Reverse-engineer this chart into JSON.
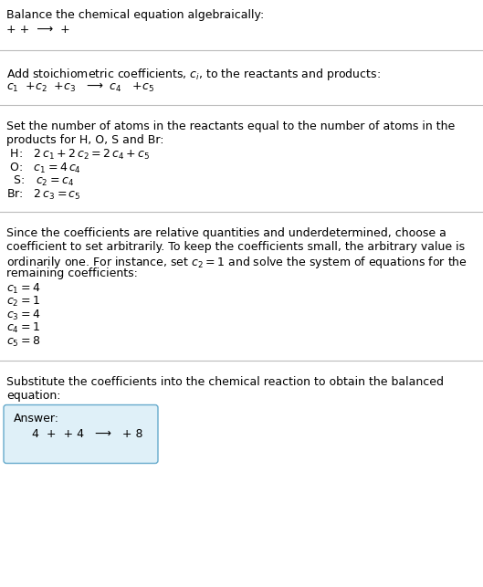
{
  "title": "Balance the chemical equation algebraically:",
  "line1": "+ +  ⟶  +",
  "section2_header": "Add stoichiometric coefficients, $c_i$, to the reactants and products:",
  "section2_eq": "$c_1$  +$c_2$  +$c_3$   ⟶  $c_4$   +$c_5$",
  "section3_header1": "Set the number of atoms in the reactants equal to the number of atoms in the",
  "section3_header2": "products for H, O, S and Br:",
  "section3_lines": [
    " H:   $2\\,c_1 + 2\\,c_2 = 2\\,c_4 + c_5$",
    " O:   $c_1 = 4\\,c_4$",
    "  S:   $c_2 = c_4$",
    "Br:   $2\\,c_3 = c_5$"
  ],
  "section4_header1": "Since the coefficients are relative quantities and underdetermined, choose a",
  "section4_header2": "coefficient to set arbitrarily. To keep the coefficients small, the arbitrary value is",
  "section4_header3": "ordinarily one. For instance, set $c_2 = 1$ and solve the system of equations for the",
  "section4_header4": "remaining coefficients:",
  "section4_lines": [
    "$c_1 = 4$",
    "$c_2 = 1$",
    "$c_3 = 4$",
    "$c_4 = 1$",
    "$c_5 = 8$"
  ],
  "section5_header1": "Substitute the coefficients into the chemical reaction to obtain the balanced",
  "section5_header2": "equation:",
  "answer_label": "Answer:",
  "answer_eq": "4  +  + 4   ⟶   + 8",
  "bg_color": "#ffffff",
  "text_color": "#000000",
  "line_color": "#bbbbbb",
  "answer_box_color": "#dff0f8",
  "answer_box_border": "#66aacc"
}
